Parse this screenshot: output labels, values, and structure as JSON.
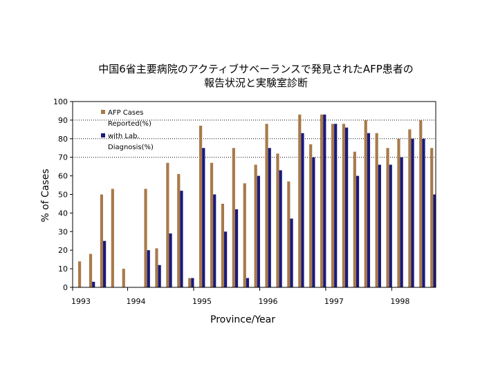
{
  "title_line1": "中国6省主要病院のアクティブサベーランスで発見されたAFP患者の",
  "title_line2": "報告状況と実験室診断",
  "colors": {
    "reported": "#a87a4a",
    "lab": "#1a1a7a"
  },
  "chart_data": {
    "type": "bar",
    "ylabel": "% of Cases",
    "xlabel": "Province/Year",
    "ylim": [
      0,
      100
    ],
    "yticks": [
      0,
      10,
      20,
      30,
      40,
      50,
      60,
      70,
      80,
      90,
      100
    ],
    "grid": "horizontal dotted at 70, 80, 90",
    "legend_position": "top-left",
    "year_labels": [
      {
        "label": "1993",
        "group": 0
      },
      {
        "label": "1994",
        "group": 5
      },
      {
        "label": "1995",
        "group": 11
      },
      {
        "label": "1996",
        "group": 17
      },
      {
        "label": "1997",
        "group": 23
      },
      {
        "label": "1998",
        "group": 29
      }
    ],
    "series": [
      {
        "name": "AFP Cases Reported(%)",
        "values": [
          14,
          18,
          50,
          53,
          10,
          0,
          53,
          21,
          67,
          61,
          5,
          87,
          67,
          45,
          75,
          56,
          66,
          88,
          72,
          57,
          93,
          77,
          93,
          88,
          88,
          73,
          90,
          83,
          75,
          80,
          85,
          90,
          75
        ]
      },
      {
        "name": "with Lab. Diagnosis(%)",
        "values": [
          0,
          3,
          25,
          0,
          0,
          0,
          20,
          12,
          29,
          52,
          5,
          75,
          50,
          30,
          42,
          5,
          60,
          75,
          63,
          37,
          83,
          70,
          93,
          88,
          86,
          60,
          83,
          66,
          66,
          70,
          80,
          80,
          50
        ]
      }
    ]
  }
}
